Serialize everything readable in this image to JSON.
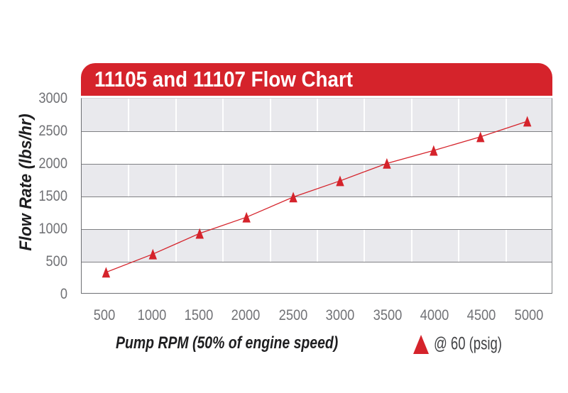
{
  "chart_data": {
    "type": "line",
    "title": "11105 and 11107 Flow Chart",
    "xlabel": "Pump RPM (50% of engine speed)",
    "ylabel": "Flow Rate (lbs/hr)",
    "x": [
      500,
      1000,
      1500,
      2000,
      2500,
      3000,
      3500,
      4000,
      4500,
      5000
    ],
    "series": [
      {
        "name": "@ 60 (psig)",
        "marker": "triangle",
        "values": [
          320,
          600,
          920,
          1170,
          1480,
          1730,
          2000,
          2200,
          2410,
          2650
        ]
      }
    ],
    "ylim": [
      0,
      3000
    ],
    "yticks": [
      0,
      500,
      1000,
      1500,
      2000,
      2500,
      3000
    ],
    "grid": "horizontal lines at 500 steps, alternating gray/white bands, light vertical separators between categories",
    "legend_position": "below chart, right of x-axis title"
  },
  "legend": {
    "label": "@ 60 (psig)"
  },
  "colors": {
    "accent_red": "#d5232b",
    "band_gray": "#e9e9ed",
    "grid_gray": "#7f8084",
    "tick_text": "#717276",
    "title_text": "#ffffff",
    "axis_title_text": "#1e1e20"
  }
}
